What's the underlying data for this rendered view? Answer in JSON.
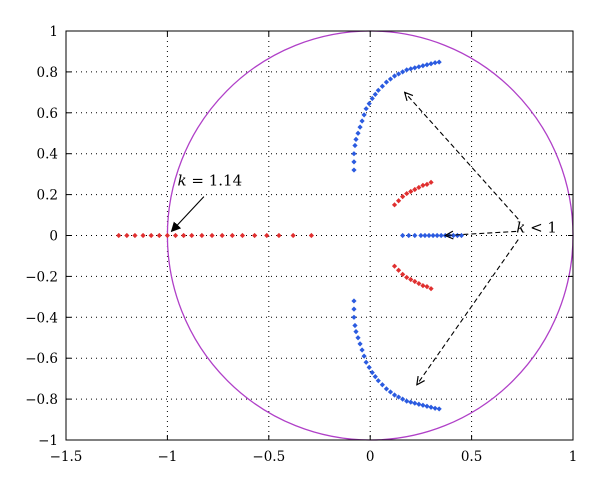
{
  "chart_data": {
    "type": "scatter",
    "xlim": [
      -1.5,
      1
    ],
    "ylim": [
      -1,
      1
    ],
    "x_ticks": [
      -1.5,
      -1,
      -0.5,
      0,
      0.5,
      1
    ],
    "y_ticks": [
      -1,
      -0.8,
      -0.6,
      -0.4,
      -0.2,
      0,
      0.2,
      0.4,
      0.6,
      0.8,
      1
    ],
    "x_tick_labels": [
      "-1.5",
      "-1",
      "-0.5",
      "0",
      "0.5",
      "1"
    ],
    "y_tick_labels": [
      "-1",
      "-0.8",
      "-0.6",
      "-0.4",
      "-0.2",
      "0",
      "0.2",
      "0.4",
      "0.6",
      "0.8",
      "1"
    ],
    "grid": true,
    "colors": {
      "blue": "#2b5be0",
      "red": "#e03030",
      "circle": "#b040c8"
    },
    "unit_circle": {
      "center": [
        0,
        0
      ],
      "radius": 1
    },
    "series": [
      {
        "color": "blue",
        "points": [
          [
            -0.08,
            0.32
          ],
          [
            -0.08,
            0.36
          ],
          [
            -0.08,
            0.4
          ],
          [
            -0.075,
            0.44
          ],
          [
            -0.07,
            0.47
          ],
          [
            -0.06,
            0.5
          ],
          [
            -0.05,
            0.53
          ],
          [
            -0.04,
            0.56
          ],
          [
            -0.03,
            0.59
          ],
          [
            -0.02,
            0.62
          ],
          [
            -0.005,
            0.645
          ],
          [
            0.01,
            0.67
          ],
          [
            0.025,
            0.69
          ],
          [
            0.04,
            0.71
          ],
          [
            0.06,
            0.73
          ],
          [
            0.08,
            0.75
          ],
          [
            0.1,
            0.765
          ],
          [
            0.12,
            0.78
          ],
          [
            0.14,
            0.79
          ],
          [
            0.16,
            0.8
          ],
          [
            0.18,
            0.81
          ],
          [
            0.2,
            0.815
          ],
          [
            0.22,
            0.82
          ],
          [
            0.24,
            0.825
          ],
          [
            0.26,
            0.83
          ],
          [
            0.28,
            0.835
          ],
          [
            0.3,
            0.84
          ],
          [
            0.32,
            0.845
          ],
          [
            0.34,
            0.848
          ],
          [
            -0.08,
            -0.32
          ],
          [
            -0.08,
            -0.36
          ],
          [
            -0.08,
            -0.4
          ],
          [
            -0.075,
            -0.44
          ],
          [
            -0.07,
            -0.47
          ],
          [
            -0.06,
            -0.5
          ],
          [
            -0.05,
            -0.53
          ],
          [
            -0.04,
            -0.56
          ],
          [
            -0.03,
            -0.59
          ],
          [
            -0.02,
            -0.62
          ],
          [
            -0.005,
            -0.645
          ],
          [
            0.01,
            -0.67
          ],
          [
            0.025,
            -0.69
          ],
          [
            0.04,
            -0.71
          ],
          [
            0.06,
            -0.73
          ],
          [
            0.08,
            -0.75
          ],
          [
            0.1,
            -0.765
          ],
          [
            0.12,
            -0.78
          ],
          [
            0.14,
            -0.79
          ],
          [
            0.16,
            -0.8
          ],
          [
            0.18,
            -0.81
          ],
          [
            0.2,
            -0.815
          ],
          [
            0.22,
            -0.82
          ],
          [
            0.24,
            -0.825
          ],
          [
            0.26,
            -0.83
          ],
          [
            0.28,
            -0.835
          ],
          [
            0.3,
            -0.84
          ],
          [
            0.32,
            -0.845
          ],
          [
            0.34,
            -0.848
          ],
          [
            0.16,
            0.0
          ],
          [
            0.19,
            0.0
          ],
          [
            0.22,
            0.0
          ],
          [
            0.25,
            0.0
          ],
          [
            0.27,
            0.0
          ],
          [
            0.29,
            0.0
          ],
          [
            0.31,
            0.0
          ],
          [
            0.33,
            0.0
          ],
          [
            0.35,
            0.0
          ],
          [
            0.37,
            0.0
          ],
          [
            0.39,
            0.0
          ],
          [
            0.41,
            0.0
          ],
          [
            0.43,
            0.0
          ],
          [
            0.45,
            0.0
          ]
        ]
      },
      {
        "color": "red",
        "points": [
          [
            -1.24,
            0.0
          ],
          [
            -1.2,
            0.0
          ],
          [
            -1.16,
            0.0
          ],
          [
            -1.12,
            0.0
          ],
          [
            -1.08,
            0.0
          ],
          [
            -1.04,
            0.0
          ],
          [
            -1.0,
            0.0
          ],
          [
            -0.96,
            0.0
          ],
          [
            -0.92,
            0.0
          ],
          [
            -0.88,
            0.0
          ],
          [
            -0.83,
            0.0
          ],
          [
            -0.78,
            0.0
          ],
          [
            -0.73,
            0.0
          ],
          [
            -0.68,
            0.0
          ],
          [
            -0.63,
            0.0
          ],
          [
            -0.57,
            0.0
          ],
          [
            -0.51,
            0.0
          ],
          [
            -0.45,
            0.0
          ],
          [
            -0.38,
            0.0
          ],
          [
            -0.29,
            0.0
          ],
          [
            0.12,
            0.15
          ],
          [
            0.14,
            0.17
          ],
          [
            0.16,
            0.19
          ],
          [
            0.18,
            0.205
          ],
          [
            0.2,
            0.215
          ],
          [
            0.22,
            0.225
          ],
          [
            0.24,
            0.235
          ],
          [
            0.26,
            0.245
          ],
          [
            0.28,
            0.25
          ],
          [
            0.3,
            0.26
          ],
          [
            0.12,
            -0.15
          ],
          [
            0.14,
            -0.17
          ],
          [
            0.16,
            -0.19
          ],
          [
            0.18,
            -0.205
          ],
          [
            0.2,
            -0.215
          ],
          [
            0.22,
            -0.225
          ],
          [
            0.24,
            -0.235
          ],
          [
            0.26,
            -0.245
          ],
          [
            0.28,
            -0.25
          ],
          [
            0.3,
            -0.26
          ]
        ]
      }
    ],
    "annotations": [
      {
        "var": "k",
        "text": " = 1.14",
        "text_at": [
          -0.95,
          0.27
        ],
        "arrow_from": [
          -0.82,
          0.19
        ],
        "arrow_to": [
          -0.98,
          0.02
        ],
        "style": "solid"
      },
      {
        "var": "k",
        "text": " < 1",
        "text_at": [
          0.72,
          0.04
        ],
        "arrows": [
          {
            "from": [
              0.73,
              0.08
            ],
            "to": [
              0.17,
              0.7
            ]
          },
          {
            "from": [
              0.72,
              0.02
            ],
            "to": [
              0.37,
              0.0
            ]
          },
          {
            "from": [
              0.73,
              -0.02
            ],
            "to": [
              0.23,
              -0.73
            ]
          }
        ],
        "style": "dashed"
      }
    ]
  }
}
